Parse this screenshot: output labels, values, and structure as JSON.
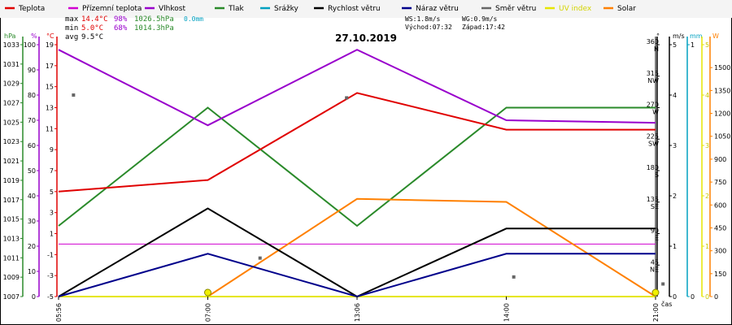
{
  "title": "27.10.2019",
  "legend": [
    {
      "label": "Teplota",
      "color": "#e00000"
    },
    {
      "label": "Přízemní teplota",
      "color": "#d000d0"
    },
    {
      "label": "Vlhkost",
      "color": "#9900cc"
    },
    {
      "label": "Tlak",
      "color": "#2a8a2a"
    },
    {
      "label": "Srážky",
      "color": "#00a0c0"
    },
    {
      "label": "Rychlost větru",
      "color": "#000000"
    },
    {
      "label": "Náraz větru",
      "color": "#00008b"
    },
    {
      "label": "Směr větru",
      "color": "#666666"
    },
    {
      "label": "UV index",
      "color": "#e6e600"
    },
    {
      "label": "Solar",
      "color": "#ff8000"
    }
  ],
  "stats": {
    "max_label": "max",
    "max_temp": "14.4°C",
    "max_hum": "98%",
    "max_press": "1026.5hPa",
    "max_rain": "0.0mm",
    "min_label": "min",
    "min_temp": "5.0°C",
    "min_hum": "68%",
    "min_press": "1014.3hPa",
    "avg_label": "avg",
    "avg_temp": "9.5°C"
  },
  "wind_info": {
    "ws": "WS:1.8m/s",
    "wg": "WG:0.9m/s",
    "sunrise": "Východ:07:32",
    "sunset": "Západ:17:42"
  },
  "axis_units": {
    "hpa": "hPa",
    "pct": "%",
    "degc": "°C",
    "deg": "°",
    "ms": "m/s",
    "mm": "mm",
    "w": "W",
    "time": "čas"
  },
  "chart_data": {
    "type": "line",
    "title": "27.10.2019",
    "x": [
      "05:56",
      "07:00",
      "13:06",
      "14:00",
      "21:00"
    ],
    "axes": {
      "pressure": {
        "unit": "hPa",
        "ylim": [
          1007,
          1033
        ],
        "ticks": [
          1007,
          1009,
          1011,
          1013,
          1015,
          1017,
          1019,
          1021,
          1023,
          1025,
          1027,
          1029,
          1031,
          1033
        ]
      },
      "humidity": {
        "unit": "%",
        "ylim": [
          0,
          100
        ],
        "ticks": [
          0,
          10,
          20,
          30,
          40,
          50,
          60,
          70,
          80,
          90,
          100
        ]
      },
      "temperature": {
        "unit": "°C",
        "ylim": [
          -5,
          19
        ],
        "ticks": [
          -5,
          -3,
          -1,
          1,
          3,
          5,
          7,
          9,
          11,
          13,
          15,
          17,
          19
        ]
      },
      "direction": {
        "unit": "°",
        "ylim": [
          0,
          360
        ],
        "ticks": [
          {
            "v": 45,
            "l": "45",
            "d": "NE"
          },
          {
            "v": 90,
            "l": "90",
            "d": "E"
          },
          {
            "v": 135,
            "l": "135",
            "d": "SE"
          },
          {
            "v": 180,
            "l": "180",
            "d": "S"
          },
          {
            "v": 225,
            "l": "225",
            "d": "SW"
          },
          {
            "v": 270,
            "l": "270",
            "d": "W"
          },
          {
            "v": 315,
            "l": "315",
            "d": "NW"
          },
          {
            "v": 360,
            "l": "360",
            "d": "N"
          }
        ]
      },
      "wind": {
        "unit": "m/s",
        "ylim": [
          0,
          5
        ],
        "ticks": [
          0,
          1,
          2,
          3,
          4,
          5
        ]
      },
      "rain": {
        "unit": "mm",
        "ylim": [
          0,
          1
        ],
        "ticks": [
          0,
          1
        ]
      },
      "uv": {
        "ylim": [
          0,
          5
        ],
        "ticks": [
          0,
          1,
          2,
          3,
          4,
          5
        ]
      },
      "solar": {
        "unit": "W",
        "ylim": [
          0,
          1650
        ],
        "ticks": [
          0,
          150,
          300,
          450,
          600,
          750,
          900,
          1050,
          1200,
          1350,
          1500
        ]
      }
    },
    "series": [
      {
        "name": "Tlak",
        "axis": "pressure",
        "color": "#2a8a2a",
        "values": [
          1014.3,
          1026.5,
          1014.3,
          1026.5,
          1026.5
        ]
      },
      {
        "name": "Přízemní teplota",
        "axis": "temperature",
        "color": "#d000d0",
        "values": [
          0,
          0,
          0,
          0,
          0
        ]
      },
      {
        "name": "Solar",
        "axis": "solar",
        "color": "#ff8000",
        "values": [
          0,
          0,
          640,
          620,
          0
        ]
      },
      {
        "name": "UV index",
        "axis": "uv",
        "color": "#e6e600",
        "values": [
          0,
          0,
          0,
          0,
          0
        ]
      },
      {
        "name": "Rychlost větru",
        "axis": "wind",
        "color": "#000000",
        "values": [
          0,
          1.75,
          0,
          1.35,
          1.35
        ]
      },
      {
        "name": "Náraz větru",
        "axis": "wind",
        "color": "#00008b",
        "values": [
          0,
          0.85,
          0,
          0.85,
          0.85
        ]
      },
      {
        "name": "Teplota",
        "axis": "temperature",
        "color": "#e00000",
        "values": [
          5.0,
          6.1,
          14.4,
          10.9,
          10.9
        ]
      },
      {
        "name": "Vlhkost",
        "axis": "humidity",
        "color": "#9900cc",
        "values": [
          98,
          68,
          98,
          70,
          69
        ]
      }
    ],
    "direction_points": {
      "axis": "direction",
      "name": "Směr větru",
      "color": "#666666",
      "x": [
        0.1,
        1.35,
        1.93,
        3.05,
        4.05
      ],
      "values": [
        288,
        55,
        284,
        28,
        18
      ]
    },
    "uv_markers": {
      "name": "UV index",
      "x": [
        1,
        4
      ],
      "values": [
        0,
        0
      ]
    },
    "grid": false
  }
}
